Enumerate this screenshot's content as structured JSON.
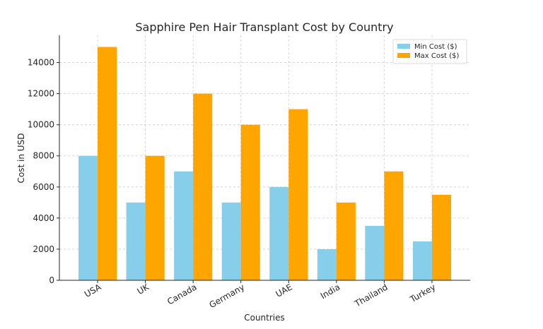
{
  "chart_data": {
    "type": "bar",
    "title": "Sapphire Pen Hair Transplant Cost by Country",
    "xlabel": "Countries",
    "ylabel": "Cost in USD",
    "categories": [
      "USA",
      "UK",
      "Canada",
      "Germany",
      "UAE",
      "India",
      "Thailand",
      "Turkey"
    ],
    "series": [
      {
        "name": "Min Cost ($)",
        "color": "#87ceeb",
        "values": [
          8000,
          5000,
          7000,
          5000,
          6000,
          2000,
          3500,
          2500
        ]
      },
      {
        "name": "Max Cost ($)",
        "color": "#ffa500",
        "values": [
          15000,
          8000,
          12000,
          10000,
          11000,
          5000,
          7000,
          5500
        ]
      }
    ],
    "ylim": [
      0,
      15750
    ],
    "yticks": [
      0,
      2000,
      4000,
      6000,
      8000,
      10000,
      12000,
      14000
    ],
    "grid": true,
    "legend_position": "top-right",
    "xtick_rotation": 30
  }
}
